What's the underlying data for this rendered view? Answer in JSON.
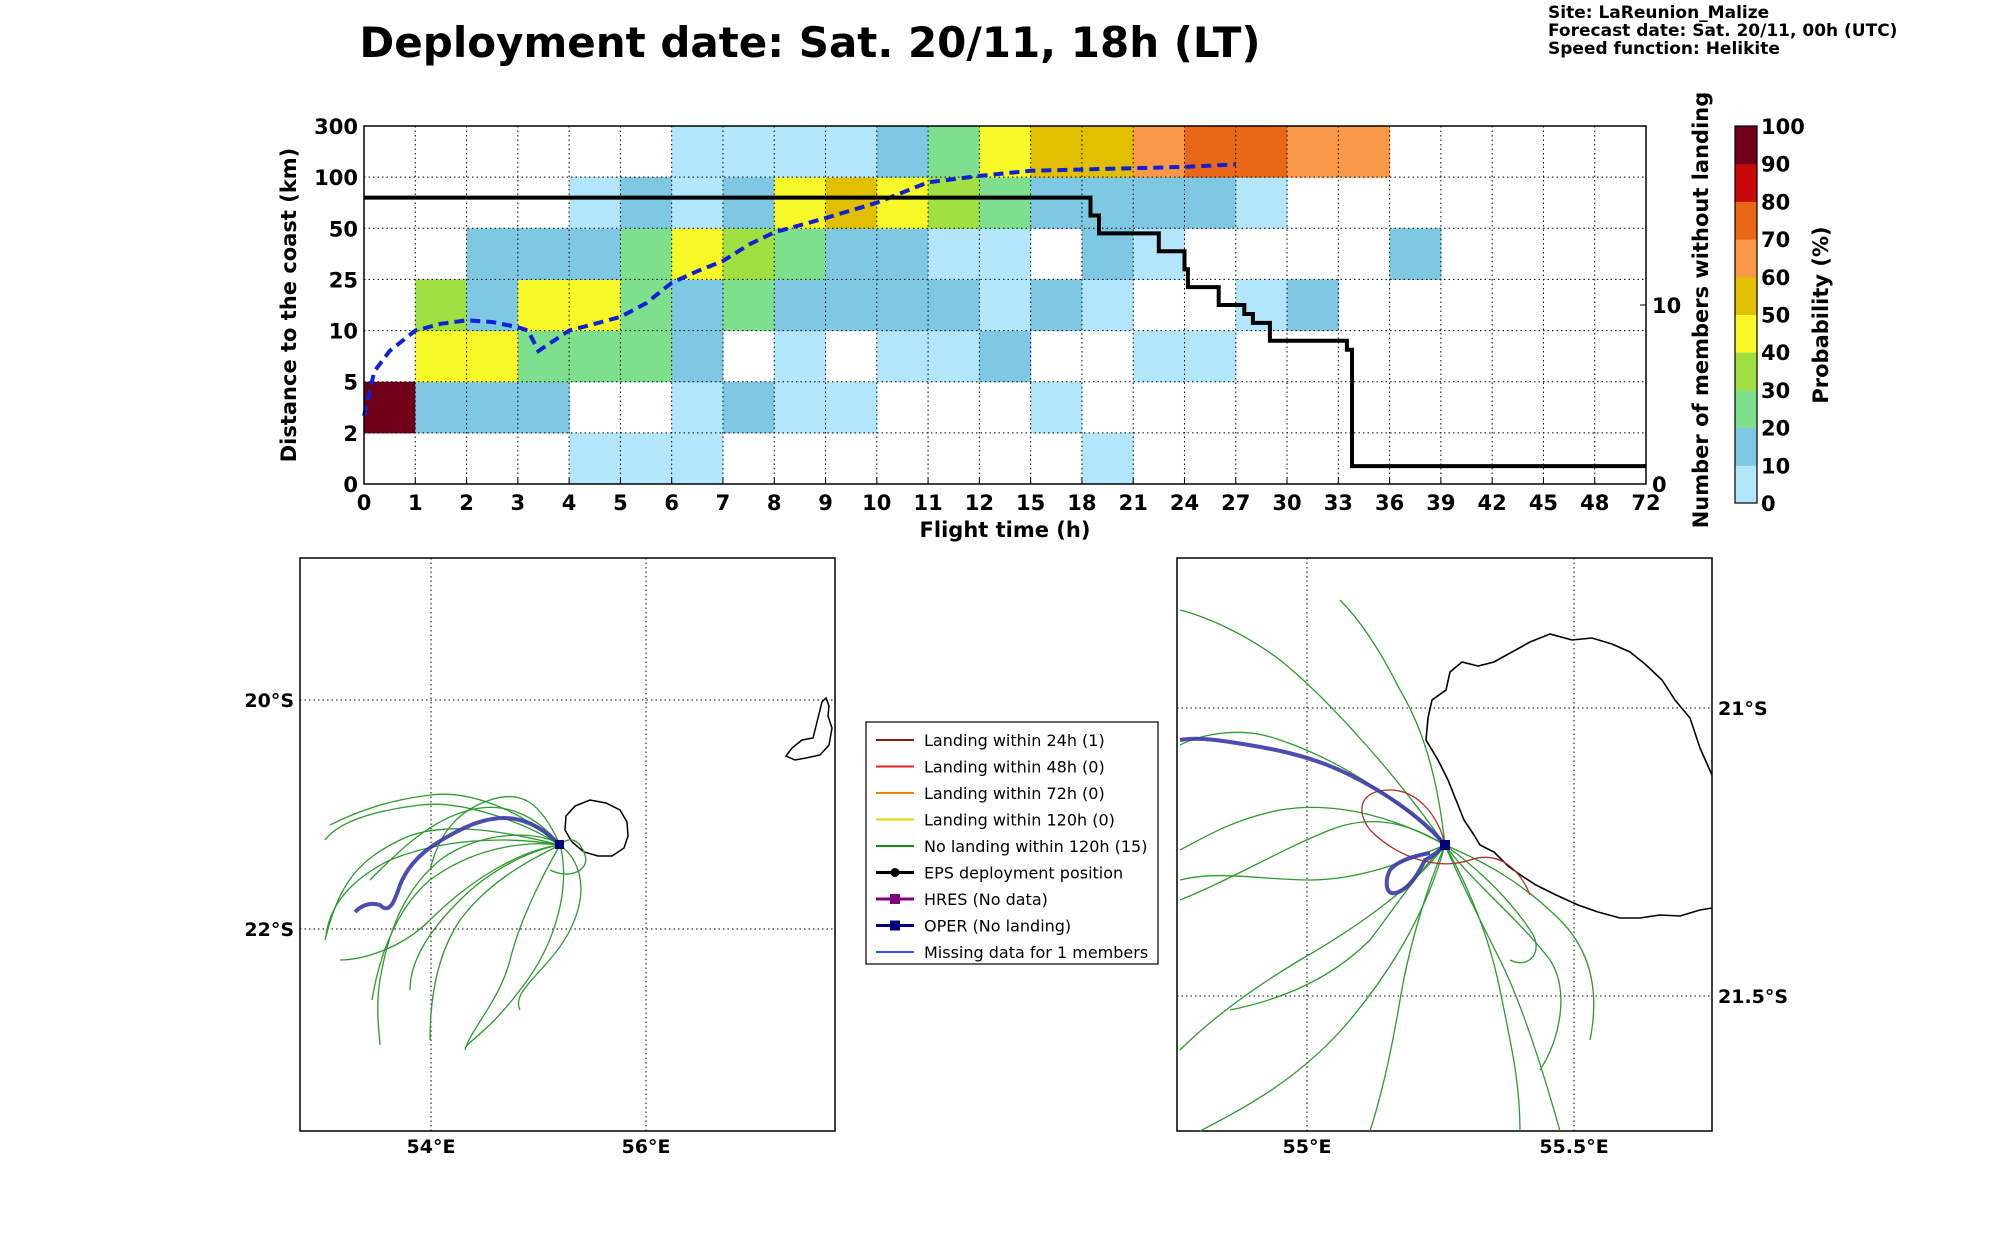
{
  "header": {
    "title": "Deployment date: Sat. 20/11, 18h (LT)",
    "site": "Site: LaReunion_Malize",
    "forecast": "Forecast date: Sat. 20/11, 00h (UTC)",
    "speed": "Speed function: Helikite"
  },
  "chart_data": [
    {
      "type": "heatmap",
      "xlabel": "Flight time (h)",
      "ylabel": "Distance to the coast (km)",
      "y2label": "Number of members without landing",
      "colorbar_label": "Probability (%)",
      "x_ticks": [
        "0",
        "1",
        "2",
        "3",
        "4",
        "5",
        "6",
        "7",
        "8",
        "9",
        "10",
        "11",
        "12",
        "15",
        "18",
        "21",
        "24",
        "27",
        "30",
        "33",
        "36",
        "39",
        "42",
        "45",
        "48",
        "72"
      ],
      "y_ticks": [
        "0",
        "2",
        "5",
        "10",
        "25",
        "50",
        "100",
        "300"
      ],
      "y2_ticks": [
        "0",
        "10"
      ],
      "y2_range": [
        0,
        20
      ],
      "colorbar_ticks": [
        "0",
        "10",
        "20",
        "30",
        "40",
        "50",
        "60",
        "70",
        "80",
        "90",
        "100"
      ],
      "colorbar_colors": [
        "#b3e5fb",
        "#7ec8e3",
        "#7ee08c",
        "#a0e040",
        "#f8f828",
        "#e0c000",
        "#f89848",
        "#e86818",
        "#c80808",
        "#700018"
      ],
      "grid": true,
      "cells_note_units": "probability class 0-9 (0=0-10%, 9=90-100%), rows from bottom band [0-2] to top band [100-300], columns per flight-time interval",
      "cells": [
        [
          null,
          null,
          null,
          null,
          0,
          0,
          0,
          null,
          null,
          null,
          null,
          null,
          null,
          null,
          0,
          null,
          null,
          null,
          null,
          null,
          null,
          null,
          null,
          null,
          null
        ],
        [
          9,
          1,
          1,
          1,
          null,
          null,
          0,
          1,
          0,
          0,
          null,
          null,
          null,
          0,
          null,
          null,
          null,
          null,
          null,
          null,
          null,
          null,
          null,
          null,
          null
        ],
        [
          null,
          4,
          4,
          2,
          2,
          2,
          1,
          null,
          0,
          null,
          0,
          0,
          1,
          null,
          null,
          0,
          0,
          null,
          null,
          null,
          null,
          null,
          null,
          null,
          null
        ],
        [
          null,
          3,
          1,
          4,
          4,
          2,
          1,
          2,
          1,
          1,
          1,
          1,
          0,
          1,
          0,
          null,
          null,
          0,
          1,
          null,
          null,
          null,
          null,
          null,
          null
        ],
        [
          null,
          null,
          1,
          1,
          1,
          2,
          4,
          3,
          2,
          1,
          1,
          0,
          0,
          null,
          1,
          0,
          null,
          null,
          null,
          null,
          1,
          null,
          null,
          null,
          null
        ],
        [
          null,
          null,
          null,
          null,
          0,
          1,
          0,
          1,
          4,
          5,
          4,
          3,
          2,
          1,
          1,
          1,
          1,
          0,
          null,
          null,
          null,
          null,
          null,
          null,
          null
        ],
        [
          null,
          null,
          null,
          null,
          null,
          null,
          0,
          0,
          0,
          0,
          1,
          2,
          4,
          5,
          5,
          6,
          7,
          7,
          6,
          6,
          null,
          null,
          null,
          null,
          null
        ]
      ],
      "series": [
        {
          "name": "",
          "style": "dashed-blue",
          "x": [
            0,
            0.2,
            0.5,
            1,
            1.5,
            2,
            2.5,
            3,
            3.2,
            3.4,
            3.7,
            4,
            4.5,
            5,
            5.5,
            6,
            6.5,
            7,
            7.5,
            8,
            9,
            10,
            11,
            12,
            15,
            18,
            21,
            24,
            27
          ],
          "y": [
            3,
            6,
            8,
            10,
            12,
            13,
            12.5,
            11,
            10,
            8,
            9,
            10,
            12,
            14,
            18,
            24,
            29,
            34,
            42,
            48,
            60,
            75,
            95,
            105,
            125,
            130,
            135,
            140,
            150
          ]
        },
        {
          "name": "",
          "style": "black-step",
          "axis": "right",
          "x": [
            0,
            18.5,
            18.5,
            19,
            19,
            22.5,
            22.5,
            24,
            24,
            24.2,
            24.2,
            26,
            26,
            27.5,
            27.5,
            28,
            28,
            29,
            29,
            33.5,
            33.5,
            33.8,
            33.8,
            72
          ],
          "y": [
            16,
            16,
            15,
            15,
            14,
            14,
            13,
            13,
            12,
            12,
            11,
            11,
            10,
            10,
            9.5,
            9.5,
            9,
            9,
            8,
            8,
            7.5,
            7.5,
            1,
            1
          ]
        }
      ]
    },
    {
      "type": "map",
      "lat_ticks": [
        "20°S",
        "22°S"
      ],
      "lon_ticks": [
        "54°E",
        "56°E"
      ]
    },
    {
      "type": "map",
      "lat_ticks": [
        "21°S",
        "21.5°S"
      ],
      "lon_ticks": [
        "55°E",
        "55.5°E"
      ]
    }
  ],
  "legend": {
    "items": [
      {
        "label": "Landing within 24h (1)",
        "color": "#8b1a1a",
        "marker": "none"
      },
      {
        "label": "Landing within 48h (0)",
        "color": "#e82020",
        "marker": "none"
      },
      {
        "label": "Landing within 72h (0)",
        "color": "#f08010",
        "marker": "none"
      },
      {
        "label": "Landing within 120h (0)",
        "color": "#f0d000",
        "marker": "none"
      },
      {
        "label": "No landing within 120h (15)",
        "color": "#1a8a1a",
        "marker": "none"
      },
      {
        "label": "EPS deployment position",
        "color": "#000000",
        "marker": "circle"
      },
      {
        "label": "HRES (No data)",
        "color": "#800080",
        "marker": "square"
      },
      {
        "label": "OPER (No landing)",
        "color": "#000080",
        "marker": "square"
      },
      {
        "label": "Missing data for 1 members",
        "color": "#3050ff",
        "marker": "none"
      }
    ]
  }
}
